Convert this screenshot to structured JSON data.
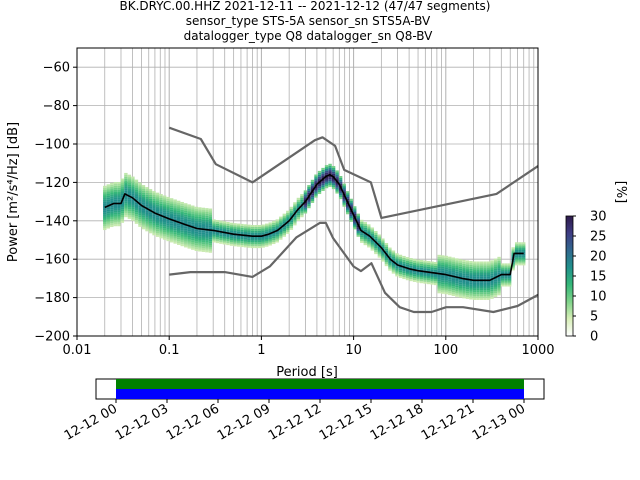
{
  "title": {
    "line1": "BK.DRYC.00.HHZ   2021-12-11 -- 2021-12-12  (47/47 segments)",
    "line2": "sensor_type STS-5A sensor_sn STS5A-BV",
    "line3": "datalogger_type Q8 datalogger_sn Q8-BV"
  },
  "colorbar": {
    "label": "[%]",
    "ticks": [
      "0",
      "5",
      "10",
      "15",
      "20",
      "25",
      "30"
    ],
    "range": [
      0,
      30
    ]
  },
  "timeline": {
    "ticks": [
      "12-12 00",
      "12-12 03",
      "12-12 06",
      "12-12 09",
      "12-12 12",
      "12-12 15",
      "12-12 18",
      "12-12 21",
      "12-13 00"
    ],
    "colors": {
      "upper": "#008000",
      "lower": "#0000ff"
    }
  },
  "chart_data": {
    "type": "line",
    "xlabel": "Period [s]",
    "ylabel": "Power [m²/s⁴/Hz] [dB]",
    "xscale": "log",
    "xlim": [
      0.01,
      1000
    ],
    "ylim": [
      -200,
      -50
    ],
    "xticks": [
      "0.01",
      "0.1",
      "1",
      "10",
      "100",
      "1000"
    ],
    "yticks": [
      "−200",
      "−180",
      "−160",
      "−140",
      "−120",
      "−100",
      "−80",
      "−60"
    ],
    "grid": true,
    "series": [
      {
        "role": "median",
        "color": "#000000",
        "x": [
          0.02,
          0.025,
          0.03,
          0.033,
          0.04,
          0.05,
          0.07,
          0.1,
          0.15,
          0.2,
          0.3,
          0.5,
          0.8,
          1.0,
          1.2,
          1.5,
          2,
          2.5,
          3,
          4,
          5,
          5.5,
          6,
          7,
          8,
          10,
          12,
          15,
          20,
          25,
          30,
          40,
          50,
          70,
          100,
          150,
          200,
          250,
          300,
          400,
          500,
          550,
          600,
          700
        ],
        "y": [
          -133,
          -131,
          -131,
          -126,
          -128,
          -132,
          -136,
          -139,
          -142,
          -144,
          -145,
          -147,
          -148,
          -148,
          -147,
          -145,
          -140,
          -134,
          -130,
          -121,
          -117,
          -116,
          -117,
          -121,
          -127,
          -137,
          -145,
          -148,
          -154,
          -160,
          -163,
          -165,
          -166,
          -167,
          -168,
          -170,
          -171,
          -171,
          -171,
          -168,
          -168,
          -157,
          -157,
          -157
        ]
      },
      {
        "role": "NHNM",
        "color": "#666666",
        "x": [
          0.1,
          0.22,
          0.32,
          0.8,
          3.8,
          4.6,
          6.3,
          7.9,
          15.4,
          20,
          354.8,
          1000
        ],
        "y": [
          -91.5,
          -97.4,
          -110.5,
          -120,
          -98,
          -96.5,
          -101,
          -113.5,
          -120,
          -138.5,
          -126,
          -111.5
        ]
      },
      {
        "role": "NLNM",
        "color": "#666666",
        "x": [
          0.1,
          0.17,
          0.4,
          0.8,
          1.24,
          2.4,
          4.3,
          5,
          6,
          10,
          12,
          15.6,
          21.9,
          31.6,
          45,
          70,
          101,
          154,
          328,
          600,
          1000
        ],
        "y": [
          -168,
          -166.7,
          -166.7,
          -169.2,
          -163.7,
          -148.6,
          -141.1,
          -141.1,
          -149,
          -163.8,
          -166.2,
          -162.1,
          -177.5,
          -185,
          -187.5,
          -187.5,
          -185,
          -185,
          -187.5,
          -184.4,
          -178.6
        ]
      }
    ]
  }
}
